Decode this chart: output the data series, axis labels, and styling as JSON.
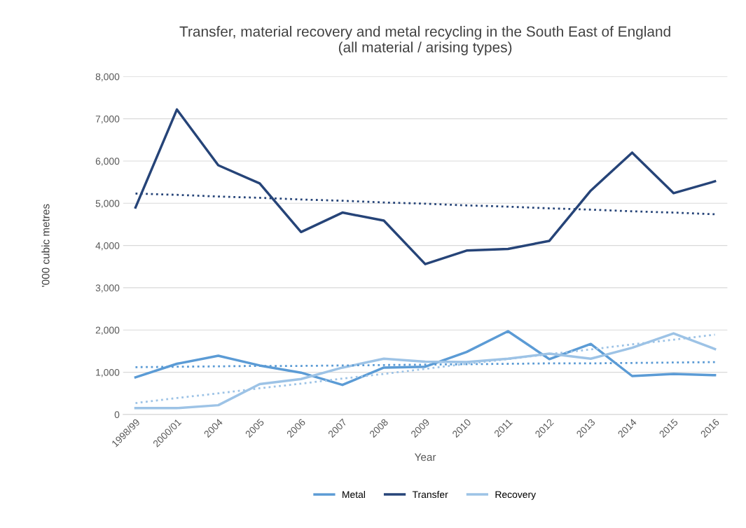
{
  "chart_data": {
    "type": "line",
    "title": "Transfer, material recovery and metal recycling in the South East of England\n(all material / arising types)",
    "xlabel": "Year",
    "ylabel": "'000 cubic metres",
    "categories": [
      "1998/99",
      "2000/01",
      "2004",
      "2005",
      "2006",
      "2007",
      "2008",
      "2009",
      "2010",
      "2011",
      "2012",
      "2013",
      "2014",
      "2015",
      "2016"
    ],
    "series": [
      {
        "name": "Metal",
        "color": "#5b9bd5",
        "values": [
          880,
          1200,
          1390,
          1160,
          990,
          700,
          1110,
          1130,
          1480,
          1970,
          1310,
          1670,
          910,
          960,
          930
        ]
      },
      {
        "name": "Transfer",
        "color": "#264478",
        "values": [
          4900,
          7220,
          5900,
          5470,
          4320,
          4780,
          4590,
          3560,
          3880,
          3920,
          4110,
          5300,
          6200,
          5240,
          5520
        ]
      },
      {
        "name": "Recovery",
        "color": "#9dc3e6",
        "values": [
          150,
          150,
          220,
          720,
          840,
          1110,
          1320,
          1250,
          1240,
          1320,
          1440,
          1320,
          1580,
          1920,
          1550
        ]
      },
      {
        "color": "#264478",
        "line_style": "dotted",
        "values": [
          5230,
          5200,
          5160,
          5130,
          5090,
          5060,
          5020,
          4990,
          4950,
          4920,
          4880,
          4850,
          4810,
          4780,
          4740
        ]
      },
      {
        "color": "#5b9bd5",
        "line_style": "dotted",
        "values": [
          1120,
          1130,
          1140,
          1150,
          1150,
          1160,
          1170,
          1180,
          1190,
          1200,
          1210,
          1210,
          1220,
          1230,
          1240
        ]
      },
      {
        "color": "#9dc3e6",
        "line_style": "dotted",
        "values": [
          270,
          390,
          500,
          620,
          730,
          850,
          960,
          1080,
          1200,
          1310,
          1430,
          1540,
          1660,
          1770,
          1890
        ]
      }
    ],
    "ylim": [
      0,
      8000
    ],
    "yticks": [
      {
        "value": 0,
        "label": "0"
      },
      {
        "value": 1000,
        "label": "1,000"
      },
      {
        "value": 2000,
        "label": "2,000"
      },
      {
        "value": 3000,
        "label": "3,000"
      },
      {
        "value": 4000,
        "label": "4,000"
      },
      {
        "value": 5000,
        "label": "5,000"
      },
      {
        "value": 6000,
        "label": "6,000"
      },
      {
        "value": 7000,
        "label": "7,000"
      },
      {
        "value": 8000,
        "label": "8,000"
      }
    ],
    "grid": "y",
    "legend": "bottom",
    "line_style": "solid",
    "marker": "none"
  }
}
